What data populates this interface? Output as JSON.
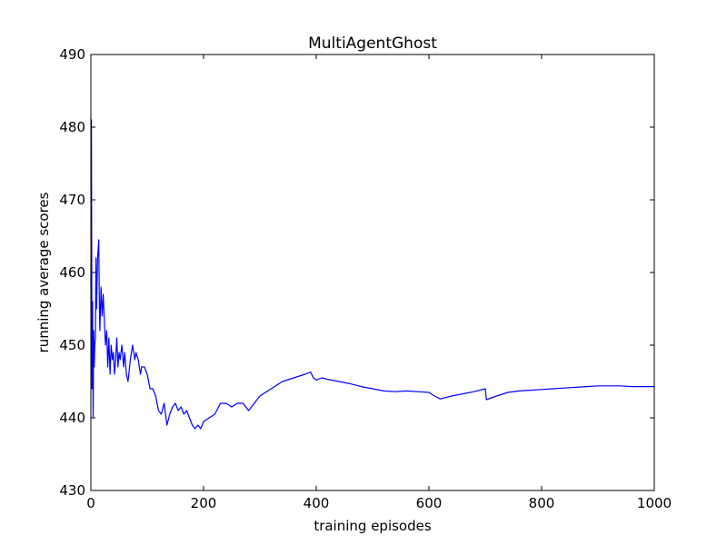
{
  "chart_data": {
    "type": "line",
    "title": "MultiAgentGhost",
    "xlabel": "training episodes",
    "ylabel": "running average scores",
    "xlim": [
      0,
      1000
    ],
    "ylim": [
      430,
      490
    ],
    "xticks": [
      0,
      200,
      400,
      600,
      800,
      1000
    ],
    "yticks": [
      430,
      440,
      450,
      460,
      470,
      480,
      490
    ],
    "grid": false,
    "legend": "none",
    "series": [
      {
        "color": "#0000ff",
        "x": [
          0,
          1,
          2,
          3,
          4,
          5,
          6,
          7,
          8,
          9,
          10,
          12,
          14,
          15,
          16,
          18,
          20,
          22,
          24,
          26,
          28,
          30,
          32,
          34,
          36,
          38,
          40,
          42,
          44,
          46,
          48,
          50,
          52,
          55,
          58,
          60,
          63,
          66,
          70,
          74,
          78,
          80,
          84,
          86,
          88,
          90,
          95,
          100,
          105,
          110,
          115,
          120,
          125,
          130,
          135,
          140,
          145,
          150,
          155,
          160,
          165,
          170,
          175,
          180,
          185,
          190,
          195,
          200,
          210,
          220,
          230,
          240,
          250,
          260,
          270,
          280,
          290,
          300,
          320,
          340,
          360,
          380,
          390,
          395,
          400,
          410,
          420,
          440,
          460,
          480,
          500,
          520,
          540,
          560,
          580,
          600,
          610,
          620,
          640,
          660,
          680,
          700,
          702,
          720,
          740,
          760,
          780,
          800,
          820,
          840,
          860,
          880,
          900,
          920,
          940,
          960,
          980,
          1000
        ],
        "y": [
          458,
          481,
          444,
          456,
          440,
          452,
          447,
          450,
          451,
          462,
          455,
          462,
          464.5,
          456,
          452,
          458,
          454,
          457,
          453,
          450,
          452,
          447,
          451,
          446,
          450,
          448,
          449,
          446,
          448,
          451,
          447,
          449,
          448,
          450,
          447,
          449,
          446,
          445,
          448,
          450,
          448,
          449,
          448,
          447,
          446,
          447,
          447,
          446,
          444,
          444,
          443,
          441,
          440.5,
          442,
          439,
          440.5,
          441.5,
          442,
          441,
          441.5,
          440.5,
          441,
          440,
          439,
          438.5,
          439,
          438.5,
          439.5,
          440,
          440.5,
          442,
          442,
          441.5,
          442,
          442,
          441,
          442,
          443,
          444,
          445,
          445.5,
          446,
          446.3,
          445.5,
          445.2,
          445.5,
          445.3,
          445,
          444.7,
          444.3,
          444,
          443.7,
          443.6,
          443.7,
          443.6,
          443.5,
          443,
          442.6,
          443,
          443.3,
          443.6,
          444,
          442.5,
          443,
          443.5,
          443.7,
          443.8,
          443.9,
          444,
          444.1,
          444.2,
          444.3,
          444.4,
          444.4,
          444.4,
          444.3,
          444.3,
          444.3
        ]
      }
    ]
  }
}
